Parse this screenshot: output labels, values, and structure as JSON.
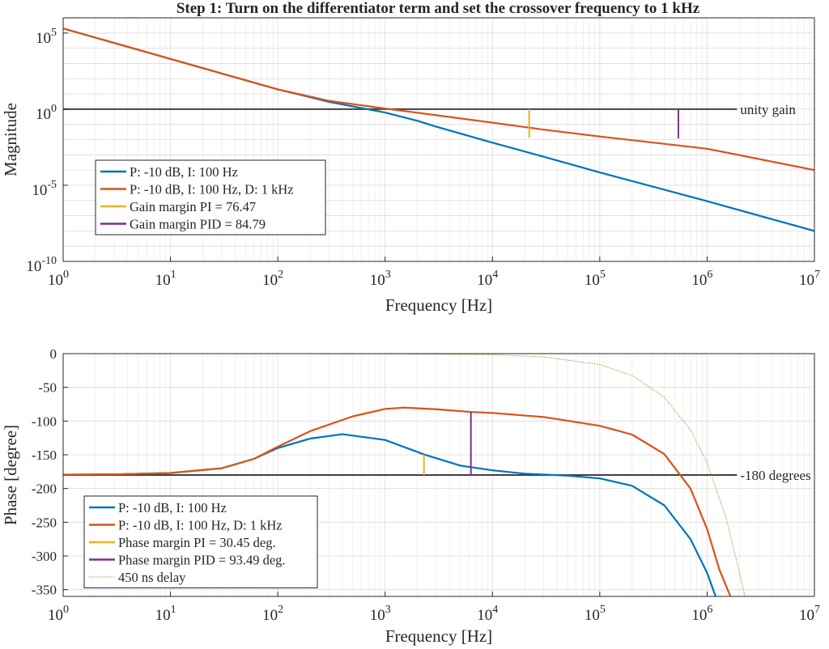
{
  "title": "Step 1: Turn on the differentiator term and set the crossover frequency to 1 kHz",
  "colors": {
    "pi": "#0072BD",
    "pid": "#D95319",
    "margin_pi": "#EDB120",
    "margin_pid": "#7E2F8E",
    "delay": "#77AC30",
    "reference": "#404040",
    "grid": "#dcdcdc",
    "axis": "#262626"
  },
  "chart_data": [
    {
      "type": "line",
      "x_scale": "log",
      "y_scale": "log",
      "xlim": [
        1,
        10000000
      ],
      "ylim": [
        1e-10,
        1000000
      ],
      "xlabel": "Frequency [Hz]",
      "ylabel": "Magnitude",
      "grid": true,
      "legend_position": "bottom-left",
      "x_ticks": [
        {
          "value": 1,
          "base": "10",
          "exp": "0"
        },
        {
          "value": 10,
          "base": "10",
          "exp": "1"
        },
        {
          "value": 100,
          "base": "10",
          "exp": "2"
        },
        {
          "value": 1000,
          "base": "10",
          "exp": "3"
        },
        {
          "value": 10000,
          "base": "10",
          "exp": "4"
        },
        {
          "value": 100000,
          "base": "10",
          "exp": "5"
        },
        {
          "value": 1000000,
          "base": "10",
          "exp": "6"
        },
        {
          "value": 10000000,
          "base": "10",
          "exp": "7"
        }
      ],
      "y_ticks": [
        {
          "value": 1e-10,
          "base": "10",
          "exp": "-10"
        },
        {
          "value": 1e-05,
          "base": "10",
          "exp": "-5"
        },
        {
          "value": 1,
          "base": "10",
          "exp": "0"
        },
        {
          "value": 100000,
          "base": "10",
          "exp": "5"
        }
      ],
      "series": [
        {
          "name": "P: -10 dB, I: 100 Hz",
          "color_key": "pi",
          "style": "solid",
          "x": [
            1,
            10,
            30,
            100,
            300,
            1000,
            2000,
            3000,
            10000,
            30000,
            100000,
            1000000,
            10000000
          ],
          "y": [
            200000,
            2000,
            220,
            20,
            3,
            0.6,
            0.17,
            0.07,
            0.0063,
            0.00075,
            7e-05,
            9e-07,
            1e-08
          ]
        },
        {
          "name": "P: -10 dB, I: 100 Hz, D: 1 kHz",
          "color_key": "pid",
          "style": "solid",
          "x": [
            1,
            10,
            30,
            100,
            300,
            1000,
            3000,
            10000,
            30000,
            100000,
            1000000,
            10000000
          ],
          "y": [
            200000,
            2000,
            220,
            20,
            3.5,
            1.1,
            0.4,
            0.13,
            0.045,
            0.016,
            0.0025,
            0.0001
          ]
        }
      ],
      "reference_lines": [
        {
          "label": "unity gain",
          "y": 1,
          "x_start": 1,
          "x_end": 1900000,
          "color_key": "reference"
        }
      ],
      "margin_markers": [
        {
          "name": "Gain margin PI = 76.47",
          "color_key": "margin_pi",
          "x": 22000,
          "y_from": 1,
          "y_to": 0.0131
        },
        {
          "name": "Gain margin PID = 84.79",
          "color_key": "margin_pid",
          "x": 540000,
          "y_from": 1,
          "y_to": 0.0118
        }
      ]
    },
    {
      "type": "line",
      "x_scale": "log",
      "y_scale": "linear",
      "xlim": [
        1,
        10000000
      ],
      "ylim": [
        -360,
        0
      ],
      "xlabel": "Frequency [Hz]",
      "ylabel": "Phase [degree]",
      "grid": true,
      "legend_position": "bottom-left",
      "x_ticks": [
        {
          "value": 1,
          "base": "10",
          "exp": "0"
        },
        {
          "value": 10,
          "base": "10",
          "exp": "1"
        },
        {
          "value": 100,
          "base": "10",
          "exp": "2"
        },
        {
          "value": 1000,
          "base": "10",
          "exp": "3"
        },
        {
          "value": 10000,
          "base": "10",
          "exp": "4"
        },
        {
          "value": 100000,
          "base": "10",
          "exp": "5"
        },
        {
          "value": 1000000,
          "base": "10",
          "exp": "6"
        },
        {
          "value": 10000000,
          "base": "10",
          "exp": "7"
        }
      ],
      "y_ticks": [
        {
          "value": 0,
          "label": "0"
        },
        {
          "value": -50,
          "label": "-50"
        },
        {
          "value": -100,
          "label": "-100"
        },
        {
          "value": -150,
          "label": "-150"
        },
        {
          "value": -200,
          "label": "-200"
        },
        {
          "value": -250,
          "label": "-250"
        },
        {
          "value": -300,
          "label": "-300"
        },
        {
          "value": -350,
          "label": "-350"
        }
      ],
      "series": [
        {
          "name": "P: -10 dB, I: 100 Hz",
          "color_key": "pi",
          "style": "solid",
          "x": [
            1,
            3,
            10,
            30,
            60,
            100,
            200,
            400,
            1000,
            2300,
            5000,
            10000,
            20000,
            50000,
            100000,
            200000,
            400000,
            700000,
            1000000,
            1200000
          ],
          "y": [
            -179.5,
            -179,
            -177,
            -170,
            -156,
            -140,
            -126,
            -119.5,
            -128,
            -149.5,
            -166,
            -173,
            -178,
            -181,
            -185,
            -196,
            -225,
            -275,
            -325,
            -360
          ]
        },
        {
          "name": "P: -10 dB, I: 100 Hz, D: 1 kHz",
          "color_key": "pid",
          "style": "solid",
          "x": [
            1,
            3,
            10,
            30,
            60,
            100,
            200,
            500,
            1000,
            1500,
            3000,
            6300,
            10000,
            30000,
            100000,
            200000,
            400000,
            700000,
            1000000,
            1300000,
            1650000
          ],
          "y": [
            -179.5,
            -179,
            -177,
            -170,
            -156,
            -138,
            -115,
            -93,
            -82,
            -80,
            -82.5,
            -86.5,
            -88,
            -94,
            -107,
            -120,
            -149,
            -200,
            -260,
            -320,
            -360
          ]
        },
        {
          "name": "450 ns delay",
          "color_key": "delay",
          "style": "dotted",
          "x": [
            1,
            10,
            100,
            1000,
            10000,
            30000,
            100000,
            200000,
            400000,
            700000,
            1000000,
            1500000,
            2000000,
            2250000
          ],
          "y": [
            0,
            0,
            0,
            -0.2,
            -1.6,
            -4.9,
            -16.2,
            -32.4,
            -64.8,
            -113,
            -162,
            -243,
            -324,
            -360
          ]
        }
      ],
      "reference_lines": [
        {
          "label": "-180 degrees",
          "y": -180,
          "x_start": 1,
          "x_end": 1900000,
          "color_key": "reference"
        }
      ],
      "margin_markers": [
        {
          "name": "Phase margin PI = 30.45 deg.",
          "color_key": "margin_pi",
          "x": 2300,
          "y_from": -180,
          "y_to": -149.55
        },
        {
          "name": "Phase margin PID = 93.49 deg.",
          "color_key": "margin_pid",
          "x": 6300,
          "y_from": -180,
          "y_to": -86.51
        }
      ]
    }
  ]
}
